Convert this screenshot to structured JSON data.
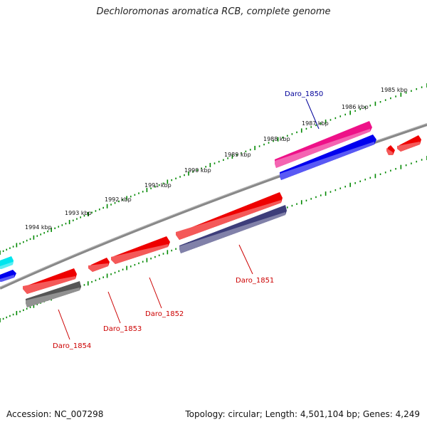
{
  "title": "Dechloromonas aromatica RCB, complete genome",
  "footer": {
    "accession": "Accession: NC_007298",
    "summary": "Topology: circular; Length: 4,501,104 bp; Genes: 4,249"
  },
  "colors": {
    "backbone": "#888888",
    "ticks": "#008800",
    "highlight_label": "#000099",
    "gene_label": "#cc0000"
  },
  "scale_labels": [
    "1985 kbp",
    "1986 kbp",
    "1987 kbp",
    "1988 kbp",
    "1989 kbp",
    "1990 kbp",
    "1991 kbp",
    "1992 kbp",
    "1993 kbp",
    "1994 kbp"
  ],
  "gene_labels": [
    {
      "name": "Daro_1850",
      "color": "#000099"
    },
    {
      "name": "Daro_1851",
      "color": "#cc0000"
    },
    {
      "name": "Daro_1852",
      "color": "#cc0000"
    },
    {
      "name": "Daro_1853",
      "color": "#cc0000"
    },
    {
      "name": "Daro_1854",
      "color": "#cc0000"
    }
  ],
  "features": [
    {
      "id": "f-cyan",
      "color": "#00e5ee"
    },
    {
      "id": "f-blue-left",
      "color": "#0000ee"
    },
    {
      "id": "f-1854-red",
      "color": "#ee0000"
    },
    {
      "id": "f-1854-grey",
      "color": "#555555"
    },
    {
      "id": "f-1853-red",
      "color": "#ee0000"
    },
    {
      "id": "f-1852-red",
      "color": "#ee0000"
    },
    {
      "id": "f-1851-red",
      "color": "#ee0000"
    },
    {
      "id": "f-1851-purple",
      "color": "#3d3d7a"
    },
    {
      "id": "f-1850-pink",
      "color": "#ee1188"
    },
    {
      "id": "f-1850-blue",
      "color": "#0000ee"
    },
    {
      "id": "f-small-red",
      "color": "#ee0000"
    },
    {
      "id": "f-right-red",
      "color": "#ee0000"
    }
  ]
}
